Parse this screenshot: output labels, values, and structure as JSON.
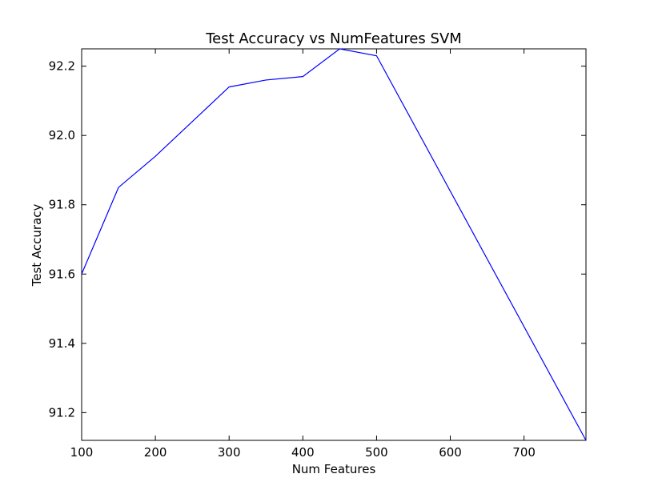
{
  "chart_data": {
    "type": "line",
    "title": "Test Accuracy vs NumFeatures SVM",
    "xlabel": "Num Features",
    "ylabel": "Test Accuracy",
    "xlim": [
      100,
      784
    ],
    "ylim": [
      91.12,
      92.25
    ],
    "xticks": [
      100,
      200,
      300,
      400,
      500,
      600,
      700
    ],
    "xtick_labels": [
      "100",
      "200",
      "300",
      "400",
      "500",
      "600",
      "700"
    ],
    "yticks": [
      91.2,
      91.4,
      91.6,
      91.8,
      92.0,
      92.2
    ],
    "ytick_labels": [
      "91.2",
      "91.4",
      "91.6",
      "91.8",
      "92.0",
      "92.2"
    ],
    "grid": false,
    "series": [
      {
        "color": "#0000ff",
        "x": [
          100,
          150,
          200,
          300,
          350,
          400,
          450,
          500,
          784
        ],
        "y": [
          91.6,
          91.85,
          91.94,
          92.14,
          92.16,
          92.17,
          92.25,
          92.23,
          91.12
        ]
      }
    ]
  }
}
